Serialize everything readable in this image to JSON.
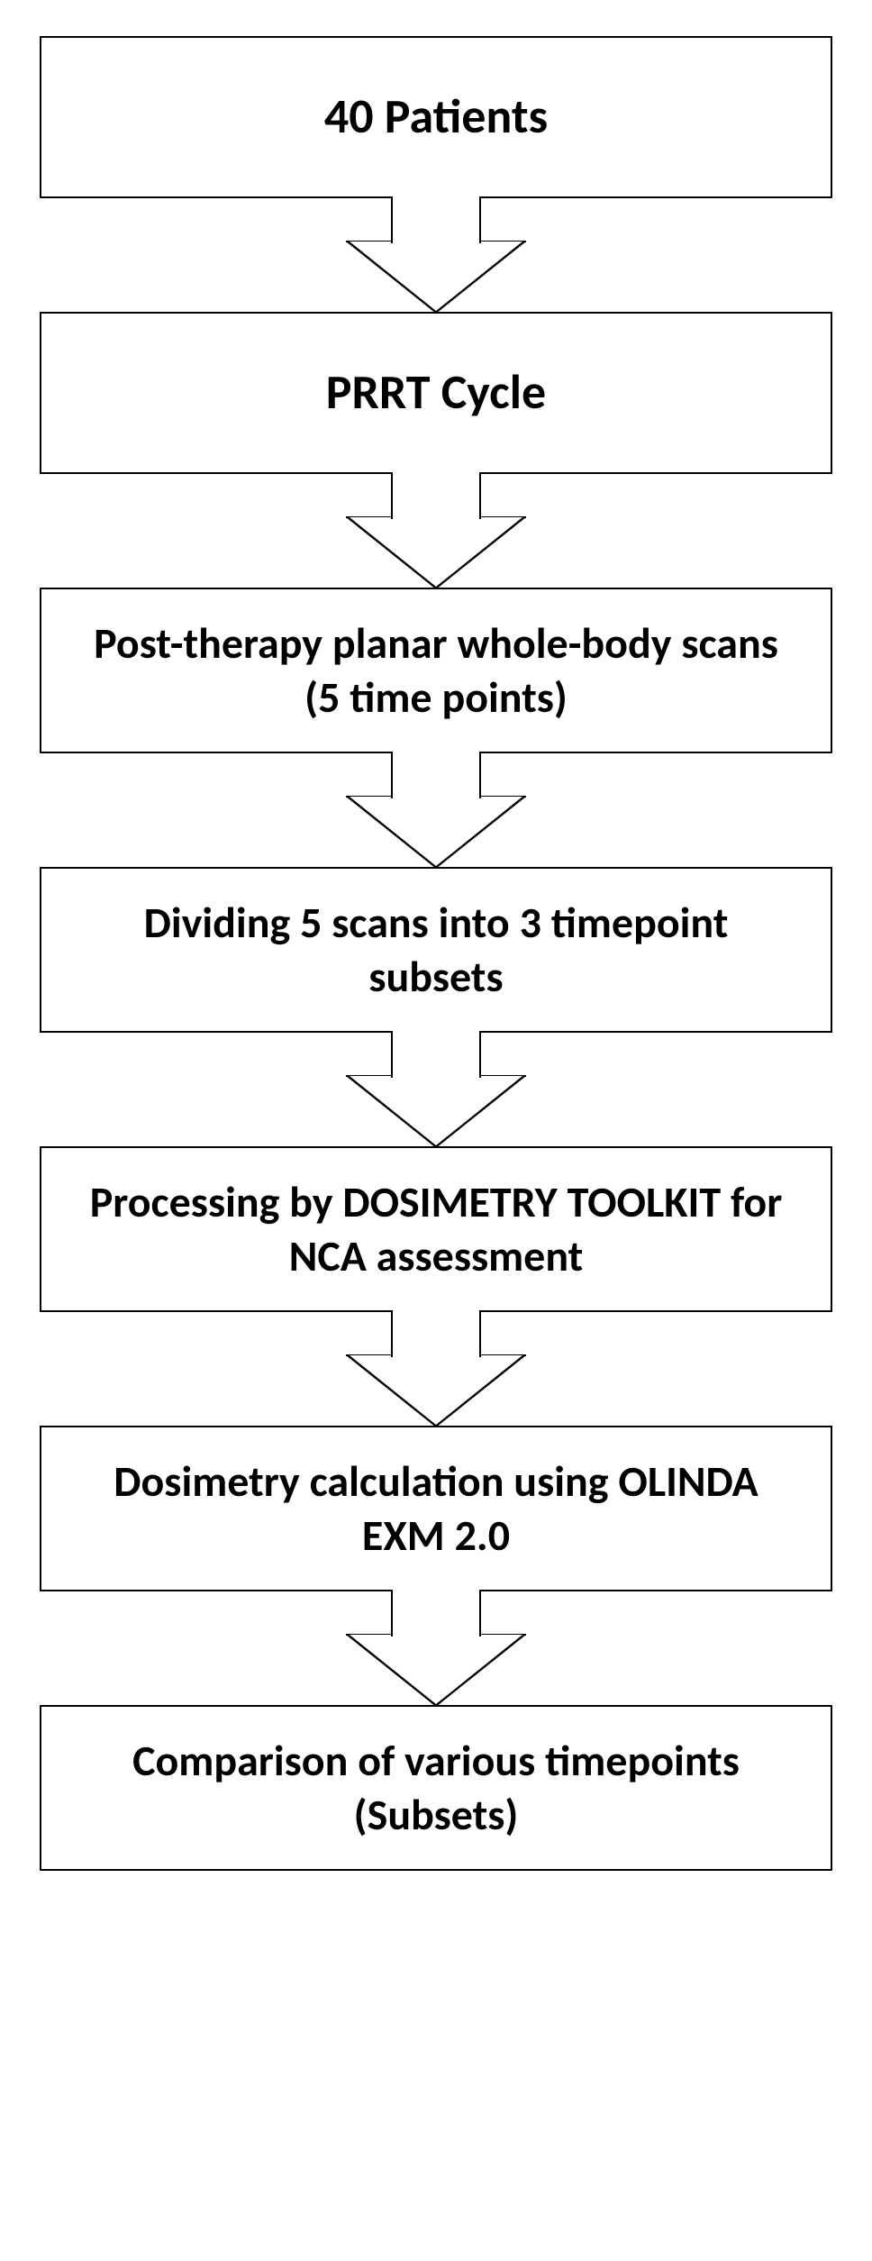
{
  "flowchart": {
    "type": "flowchart",
    "direction": "vertical",
    "background_color": "#ffffff",
    "node_border_color": "#000000",
    "node_border_width": 2,
    "node_fill_color": "#ffffff",
    "text_color": "#000000",
    "font_weight": 700,
    "font_family": "Calibri, Arial, sans-serif",
    "arrow_color": "#000000",
    "arrow_fill_color": "#ffffff",
    "nodes": [
      {
        "id": "n1",
        "label": "40 Patients",
        "fontsize": 54
      },
      {
        "id": "n2",
        "label": "PRRT Cycle",
        "fontsize": 54
      },
      {
        "id": "n3",
        "label": "Post-therapy planar whole-body scans (5 time points)",
        "fontsize": 48
      },
      {
        "id": "n4",
        "label": "Dividing 5 scans into 3 timepoint subsets",
        "fontsize": 48
      },
      {
        "id": "n5",
        "label": "Processing by DOSIMETRY TOOLKIT for NCA assessment",
        "fontsize": 48
      },
      {
        "id": "n6",
        "label": "Dosimetry calculation using OLINDA EXM 2.0",
        "fontsize": 48
      },
      {
        "id": "n7",
        "label": "Comparison of various timepoints (Subsets)",
        "fontsize": 48
      }
    ],
    "edges": [
      {
        "from": "n1",
        "to": "n2"
      },
      {
        "from": "n2",
        "to": "n3"
      },
      {
        "from": "n3",
        "to": "n4"
      },
      {
        "from": "n4",
        "to": "n5"
      },
      {
        "from": "n5",
        "to": "n6"
      },
      {
        "from": "n6",
        "to": "n7"
      }
    ]
  }
}
